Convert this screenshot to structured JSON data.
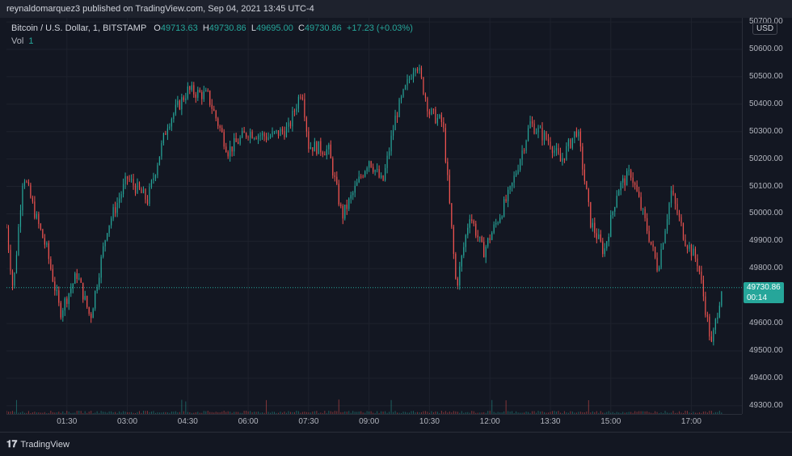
{
  "header": {
    "publish_line": "reynaldomarquez3 published on TradingView.com, Sep 04, 2021 13:45 UTC-4"
  },
  "legend": {
    "symbol": "Bitcoin / U.S. Dollar, 1, BITSTAMP",
    "o_label": "O",
    "o_value": "49713.63",
    "h_label": "H",
    "h_value": "49730.86",
    "l_label": "L",
    "l_value": "49695.00",
    "c_label": "C",
    "c_value": "49730.86",
    "change": "+17.23 (+0.03%)",
    "vol_label": "Vol",
    "vol_value": "1"
  },
  "currency_button": "USD",
  "last_price": {
    "value": "49730.86",
    "countdown": "00:14"
  },
  "footer": {
    "brand": "TradingView"
  },
  "colors": {
    "up": "#26a69a",
    "down": "#ef5350",
    "grid": "#1e222d",
    "background": "#131722"
  },
  "chart_data": {
    "type": "candlestick",
    "y_ticks": [
      "50700.00",
      "50600.00",
      "50500.00",
      "50400.00",
      "50300.00",
      "50200.00",
      "50100.00",
      "50000.00",
      "49900.00",
      "49800.00",
      "49600.00",
      "49500.00",
      "49400.00",
      "49300.00"
    ],
    "x_ticks": [
      "01:30",
      "03:00",
      "04:30",
      "06:00",
      "07:30",
      "09:00",
      "10:30",
      "12:00",
      "13:30",
      "15:00",
      "17:00"
    ],
    "ylim": [
      49270,
      50715
    ],
    "approx_close_path": [
      {
        "t": "00:00",
        "price": 49950
      },
      {
        "t": "00:10",
        "price": 49720
      },
      {
        "t": "00:25",
        "price": 50150
      },
      {
        "t": "00:45",
        "price": 49980
      },
      {
        "t": "01:00",
        "price": 49870
      },
      {
        "t": "01:20",
        "price": 49640
      },
      {
        "t": "01:45",
        "price": 49780
      },
      {
        "t": "02:05",
        "price": 49620
      },
      {
        "t": "02:30",
        "price": 49950
      },
      {
        "t": "03:00",
        "price": 50130
      },
      {
        "t": "03:30",
        "price": 50050
      },
      {
        "t": "04:00",
        "price": 50330
      },
      {
        "t": "04:30",
        "price": 50450
      },
      {
        "t": "05:00",
        "price": 50430
      },
      {
        "t": "05:30",
        "price": 50230
      },
      {
        "t": "06:00",
        "price": 50300
      },
      {
        "t": "06:30",
        "price": 50280
      },
      {
        "t": "07:00",
        "price": 50310
      },
      {
        "t": "07:20",
        "price": 50460
      },
      {
        "t": "07:30",
        "price": 50250
      },
      {
        "t": "08:00",
        "price": 50230
      },
      {
        "t": "08:20",
        "price": 49990
      },
      {
        "t": "09:00",
        "price": 50200
      },
      {
        "t": "09:20",
        "price": 50110
      },
      {
        "t": "09:40",
        "price": 50360
      },
      {
        "t": "10:10",
        "price": 50560
      },
      {
        "t": "10:30",
        "price": 50370
      },
      {
        "t": "10:50",
        "price": 50330
      },
      {
        "t": "11:10",
        "price": 49730
      },
      {
        "t": "11:30",
        "price": 50000
      },
      {
        "t": "11:50",
        "price": 49860
      },
      {
        "t": "12:30",
        "price": 50080
      },
      {
        "t": "13:00",
        "price": 50330
      },
      {
        "t": "13:30",
        "price": 50260
      },
      {
        "t": "13:45",
        "price": 50190
      },
      {
        "t": "14:10",
        "price": 50310
      },
      {
        "t": "14:30",
        "price": 49970
      },
      {
        "t": "14:50",
        "price": 49860
      },
      {
        "t": "15:10",
        "price": 50090
      },
      {
        "t": "15:30",
        "price": 50150
      },
      {
        "t": "15:50",
        "price": 49980
      },
      {
        "t": "16:10",
        "price": 49800
      },
      {
        "t": "16:30",
        "price": 50080
      },
      {
        "t": "16:50",
        "price": 49910
      },
      {
        "t": "17:10",
        "price": 49820
      },
      {
        "t": "17:30",
        "price": 49520
      },
      {
        "t": "17:45",
        "price": 49730
      }
    ]
  }
}
